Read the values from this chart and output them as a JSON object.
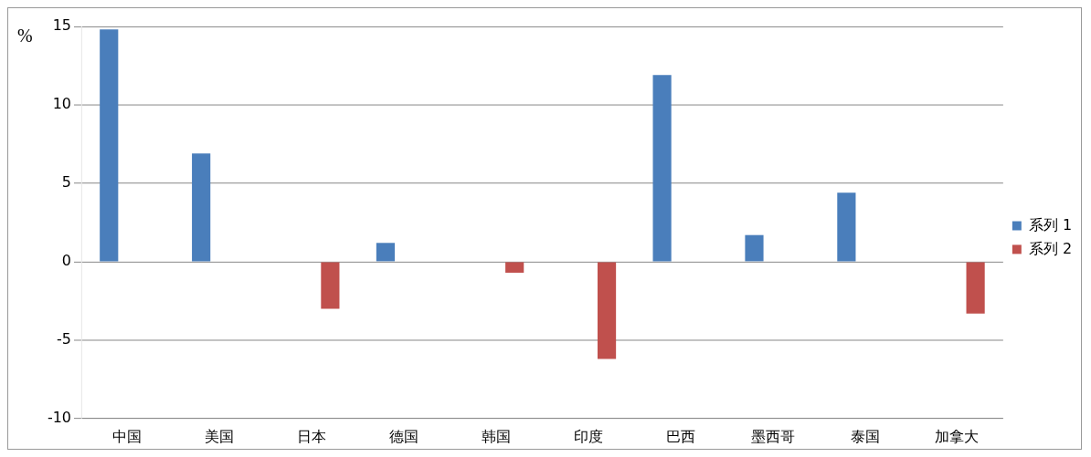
{
  "chart_data": {
    "type": "bar",
    "categories": [
      "中国",
      "美国",
      "日本",
      "德国",
      "韩国",
      "印度",
      "巴西",
      "墨西哥",
      "泰国",
      "加拿大"
    ],
    "series": [
      {
        "name": "系列 1",
        "color": "#4a7ebb",
        "values": [
          14.8,
          6.9,
          null,
          1.2,
          null,
          null,
          11.9,
          1.7,
          4.4,
          null
        ]
      },
      {
        "name": "系列 2",
        "color": "#c0504d",
        "values": [
          null,
          null,
          -3,
          null,
          -0.7,
          -6.2,
          null,
          null,
          null,
          -3.3
        ]
      }
    ],
    "ylabel": "%",
    "ylim": [
      -10,
      15
    ],
    "yticks": [
      -10,
      -5,
      0,
      5,
      10,
      15
    ],
    "grid": "y",
    "legend": "right"
  }
}
